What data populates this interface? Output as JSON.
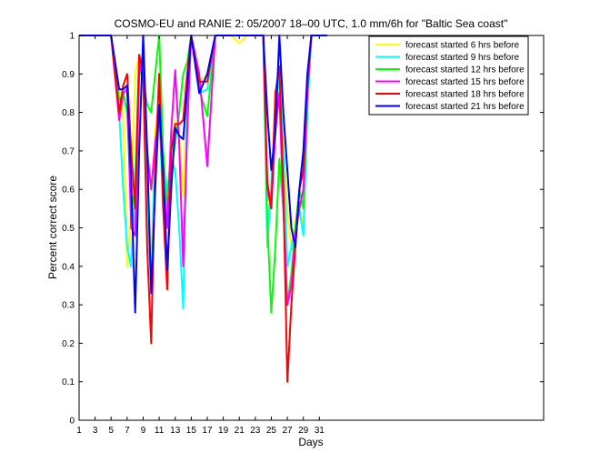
{
  "chart_data": {
    "type": "line",
    "title": "COSMO-EU and RANIE 2: 05/2007 18–00 UTC, 1.0 mm/6h for \"Baltic Sea coast\"",
    "xlabel": "Days",
    "ylabel": "Percent correct score",
    "xlim": [
      1,
      59
    ],
    "ylim": [
      0,
      1
    ],
    "xticks": [
      1,
      3,
      5,
      7,
      9,
      11,
      13,
      15,
      17,
      19,
      21,
      23,
      25,
      27,
      29,
      31
    ],
    "yticks": [
      0,
      0.1,
      0.2,
      0.3,
      0.4,
      0.5,
      0.6,
      0.7,
      0.8,
      0.9,
      1
    ],
    "ytick_labels": [
      "0",
      "0.1",
      "0.2",
      "0.3",
      "0.4",
      "0.5",
      "0.6",
      "0.7",
      "0.8",
      "0.9",
      "1"
    ],
    "grid": false,
    "legend_position": "top-right",
    "series": [
      {
        "name": "forecast started 6 hrs before",
        "color": "#ffff00",
        "x": [
          1,
          2,
          3,
          4,
          5,
          6,
          6.5,
          7,
          7.5,
          8,
          8.5,
          9,
          9.5,
          10,
          10.5,
          11,
          11.5,
          12,
          12.5,
          13,
          13.5,
          14,
          14.5,
          15,
          16,
          17,
          18,
          19,
          20,
          21,
          22,
          23,
          24,
          24.5,
          25,
          25.5,
          26,
          26.5,
          27,
          27.5,
          28,
          28.5,
          29,
          29.5,
          30,
          31,
          32
        ],
        "y": [
          1,
          1,
          1,
          1,
          1,
          0.86,
          0.8,
          0.4,
          0.55,
          0.9,
          0.95,
          0.94,
          0.62,
          0.42,
          0.75,
          0.82,
          0.6,
          0.58,
          0.7,
          0.78,
          0.74,
          0.58,
          0.88,
          1,
          0.88,
          0.9,
          1,
          1,
          1,
          0.98,
          1,
          1,
          1,
          0.53,
          0.58,
          0.82,
          0.92,
          0.72,
          0.55,
          0.45,
          0.52,
          0.56,
          0.5,
          0.82,
          1,
          1,
          1
        ]
      },
      {
        "name": "forecast started 9 hrs before",
        "color": "#00ffff",
        "x": [
          1,
          2,
          3,
          4,
          5,
          6,
          6.5,
          7,
          7.5,
          8,
          8.5,
          9,
          9.5,
          10,
          10.5,
          11,
          11.5,
          12,
          12.5,
          13,
          13.5,
          14,
          14.5,
          15,
          16,
          17,
          18,
          19,
          20,
          21,
          22,
          23,
          24,
          24.5,
          25,
          25.5,
          26,
          26.5,
          27,
          27.5,
          28,
          28.5,
          29,
          29.5,
          30,
          31,
          32
        ],
        "y": [
          1,
          1,
          1,
          1,
          1,
          0.8,
          0.6,
          0.45,
          0.4,
          0.62,
          0.95,
          0.92,
          0.55,
          0.35,
          0.7,
          0.8,
          0.55,
          0.6,
          0.68,
          0.65,
          0.5,
          0.29,
          0.82,
          1,
          0.85,
          0.86,
          1,
          1,
          1,
          1,
          1,
          1,
          1,
          0.45,
          0.62,
          0.8,
          0.9,
          0.7,
          0.4,
          0.45,
          0.5,
          0.55,
          0.48,
          0.8,
          1,
          1,
          1
        ]
      },
      {
        "name": "forecast started 12 hrs before",
        "color": "#00ff00",
        "x": [
          1,
          2,
          3,
          4,
          5,
          6,
          6.5,
          7,
          7.5,
          8,
          8.5,
          9,
          9.5,
          10,
          10.5,
          11,
          11.5,
          12,
          12.5,
          13,
          13.5,
          14,
          14.5,
          15,
          16,
          17,
          18,
          19,
          20,
          21,
          22,
          23,
          24,
          24.5,
          25,
          25.5,
          26,
          26.5,
          27,
          27.5,
          28,
          28.5,
          29,
          29.5,
          30,
          31,
          32
        ],
        "y": [
          1,
          1,
          1,
          1,
          1,
          0.83,
          0.85,
          0.8,
          0.55,
          0.6,
          0.92,
          0.88,
          0.82,
          0.8,
          0.9,
          1,
          0.7,
          0.55,
          0.65,
          0.72,
          0.8,
          0.9,
          0.93,
          1,
          0.86,
          0.79,
          1,
          1,
          1,
          1,
          1,
          1,
          1,
          0.52,
          0.28,
          0.45,
          0.68,
          0.55,
          0.3,
          0.38,
          0.5,
          0.6,
          0.55,
          0.85,
          1,
          1,
          1
        ]
      },
      {
        "name": "forecast started 15 hrs before",
        "color": "#ff00ff",
        "x": [
          1,
          2,
          3,
          4,
          5,
          6,
          6.5,
          7,
          7.5,
          8,
          8.5,
          9,
          9.5,
          10,
          10.5,
          11,
          11.5,
          12,
          12.5,
          13,
          13.5,
          14,
          14.5,
          15,
          16,
          17,
          18,
          19,
          20,
          21,
          22,
          23,
          24,
          24.5,
          25,
          25.5,
          26,
          26.5,
          27,
          27.5,
          28,
          28.5,
          29,
          29.5,
          30,
          31,
          32
        ],
        "y": [
          1,
          1,
          1,
          1,
          1,
          0.78,
          0.85,
          0.86,
          0.5,
          0.48,
          0.9,
          0.95,
          0.7,
          0.6,
          0.72,
          0.8,
          0.62,
          0.5,
          0.75,
          0.91,
          0.72,
          0.4,
          0.75,
          1,
          0.9,
          0.66,
          1,
          1,
          1,
          1,
          1,
          1,
          1,
          0.6,
          0.55,
          0.75,
          0.85,
          0.55,
          0.3,
          0.35,
          0.48,
          0.55,
          0.6,
          0.85,
          1,
          1,
          1
        ]
      },
      {
        "name": "forecast started 18 hrs before",
        "color": "#ff0000",
        "x": [
          1,
          2,
          3,
          4,
          5,
          6,
          6.5,
          7,
          7.5,
          8,
          8.5,
          9,
          9.5,
          10,
          10.5,
          11,
          11.5,
          12,
          12.5,
          13,
          13.5,
          14,
          14.5,
          15,
          16,
          17,
          18,
          19,
          20,
          21,
          22,
          23,
          24,
          24.5,
          25,
          25.5,
          26,
          26.5,
          27,
          27.5,
          28,
          28.5,
          29,
          29.5,
          30,
          31,
          32
        ],
        "y": [
          1,
          1,
          1,
          1,
          1,
          0.8,
          0.87,
          0.9,
          0.7,
          0.55,
          0.95,
          0.9,
          0.45,
          0.2,
          0.65,
          0.9,
          0.55,
          0.34,
          0.7,
          0.77,
          0.77,
          0.78,
          0.9,
          1,
          0.88,
          0.88,
          1,
          1,
          1,
          1,
          1,
          1,
          1,
          0.62,
          0.55,
          0.85,
          0.92,
          0.6,
          0.1,
          0.3,
          0.45,
          0.6,
          0.65,
          0.88,
          1,
          1,
          1
        ]
      },
      {
        "name": "forecast started 21 hrs before",
        "color": "#0000ff",
        "x": [
          1,
          2,
          3,
          4,
          5,
          6,
          6.5,
          7,
          7.5,
          8,
          8.5,
          9,
          9.5,
          10,
          10.5,
          11,
          11.5,
          12,
          12.5,
          13,
          13.5,
          14,
          14.5,
          15,
          16,
          17,
          18,
          19,
          20,
          21,
          22,
          23,
          24,
          24.5,
          25,
          25.5,
          26,
          26.5,
          27,
          27.5,
          28,
          28.5,
          29,
          29.5,
          30,
          31,
          32
        ],
        "y": [
          1,
          1,
          1,
          1,
          1,
          0.86,
          0.86,
          0.87,
          0.62,
          0.28,
          0.7,
          1,
          0.7,
          0.33,
          0.6,
          0.82,
          0.65,
          0.39,
          0.6,
          0.76,
          0.74,
          0.73,
          0.86,
          1,
          0.85,
          0.9,
          1,
          1,
          1,
          1,
          1,
          1,
          1,
          0.8,
          0.65,
          0.75,
          1,
          0.8,
          0.65,
          0.5,
          0.45,
          0.6,
          0.7,
          0.9,
          1,
          1,
          1
        ]
      }
    ]
  }
}
